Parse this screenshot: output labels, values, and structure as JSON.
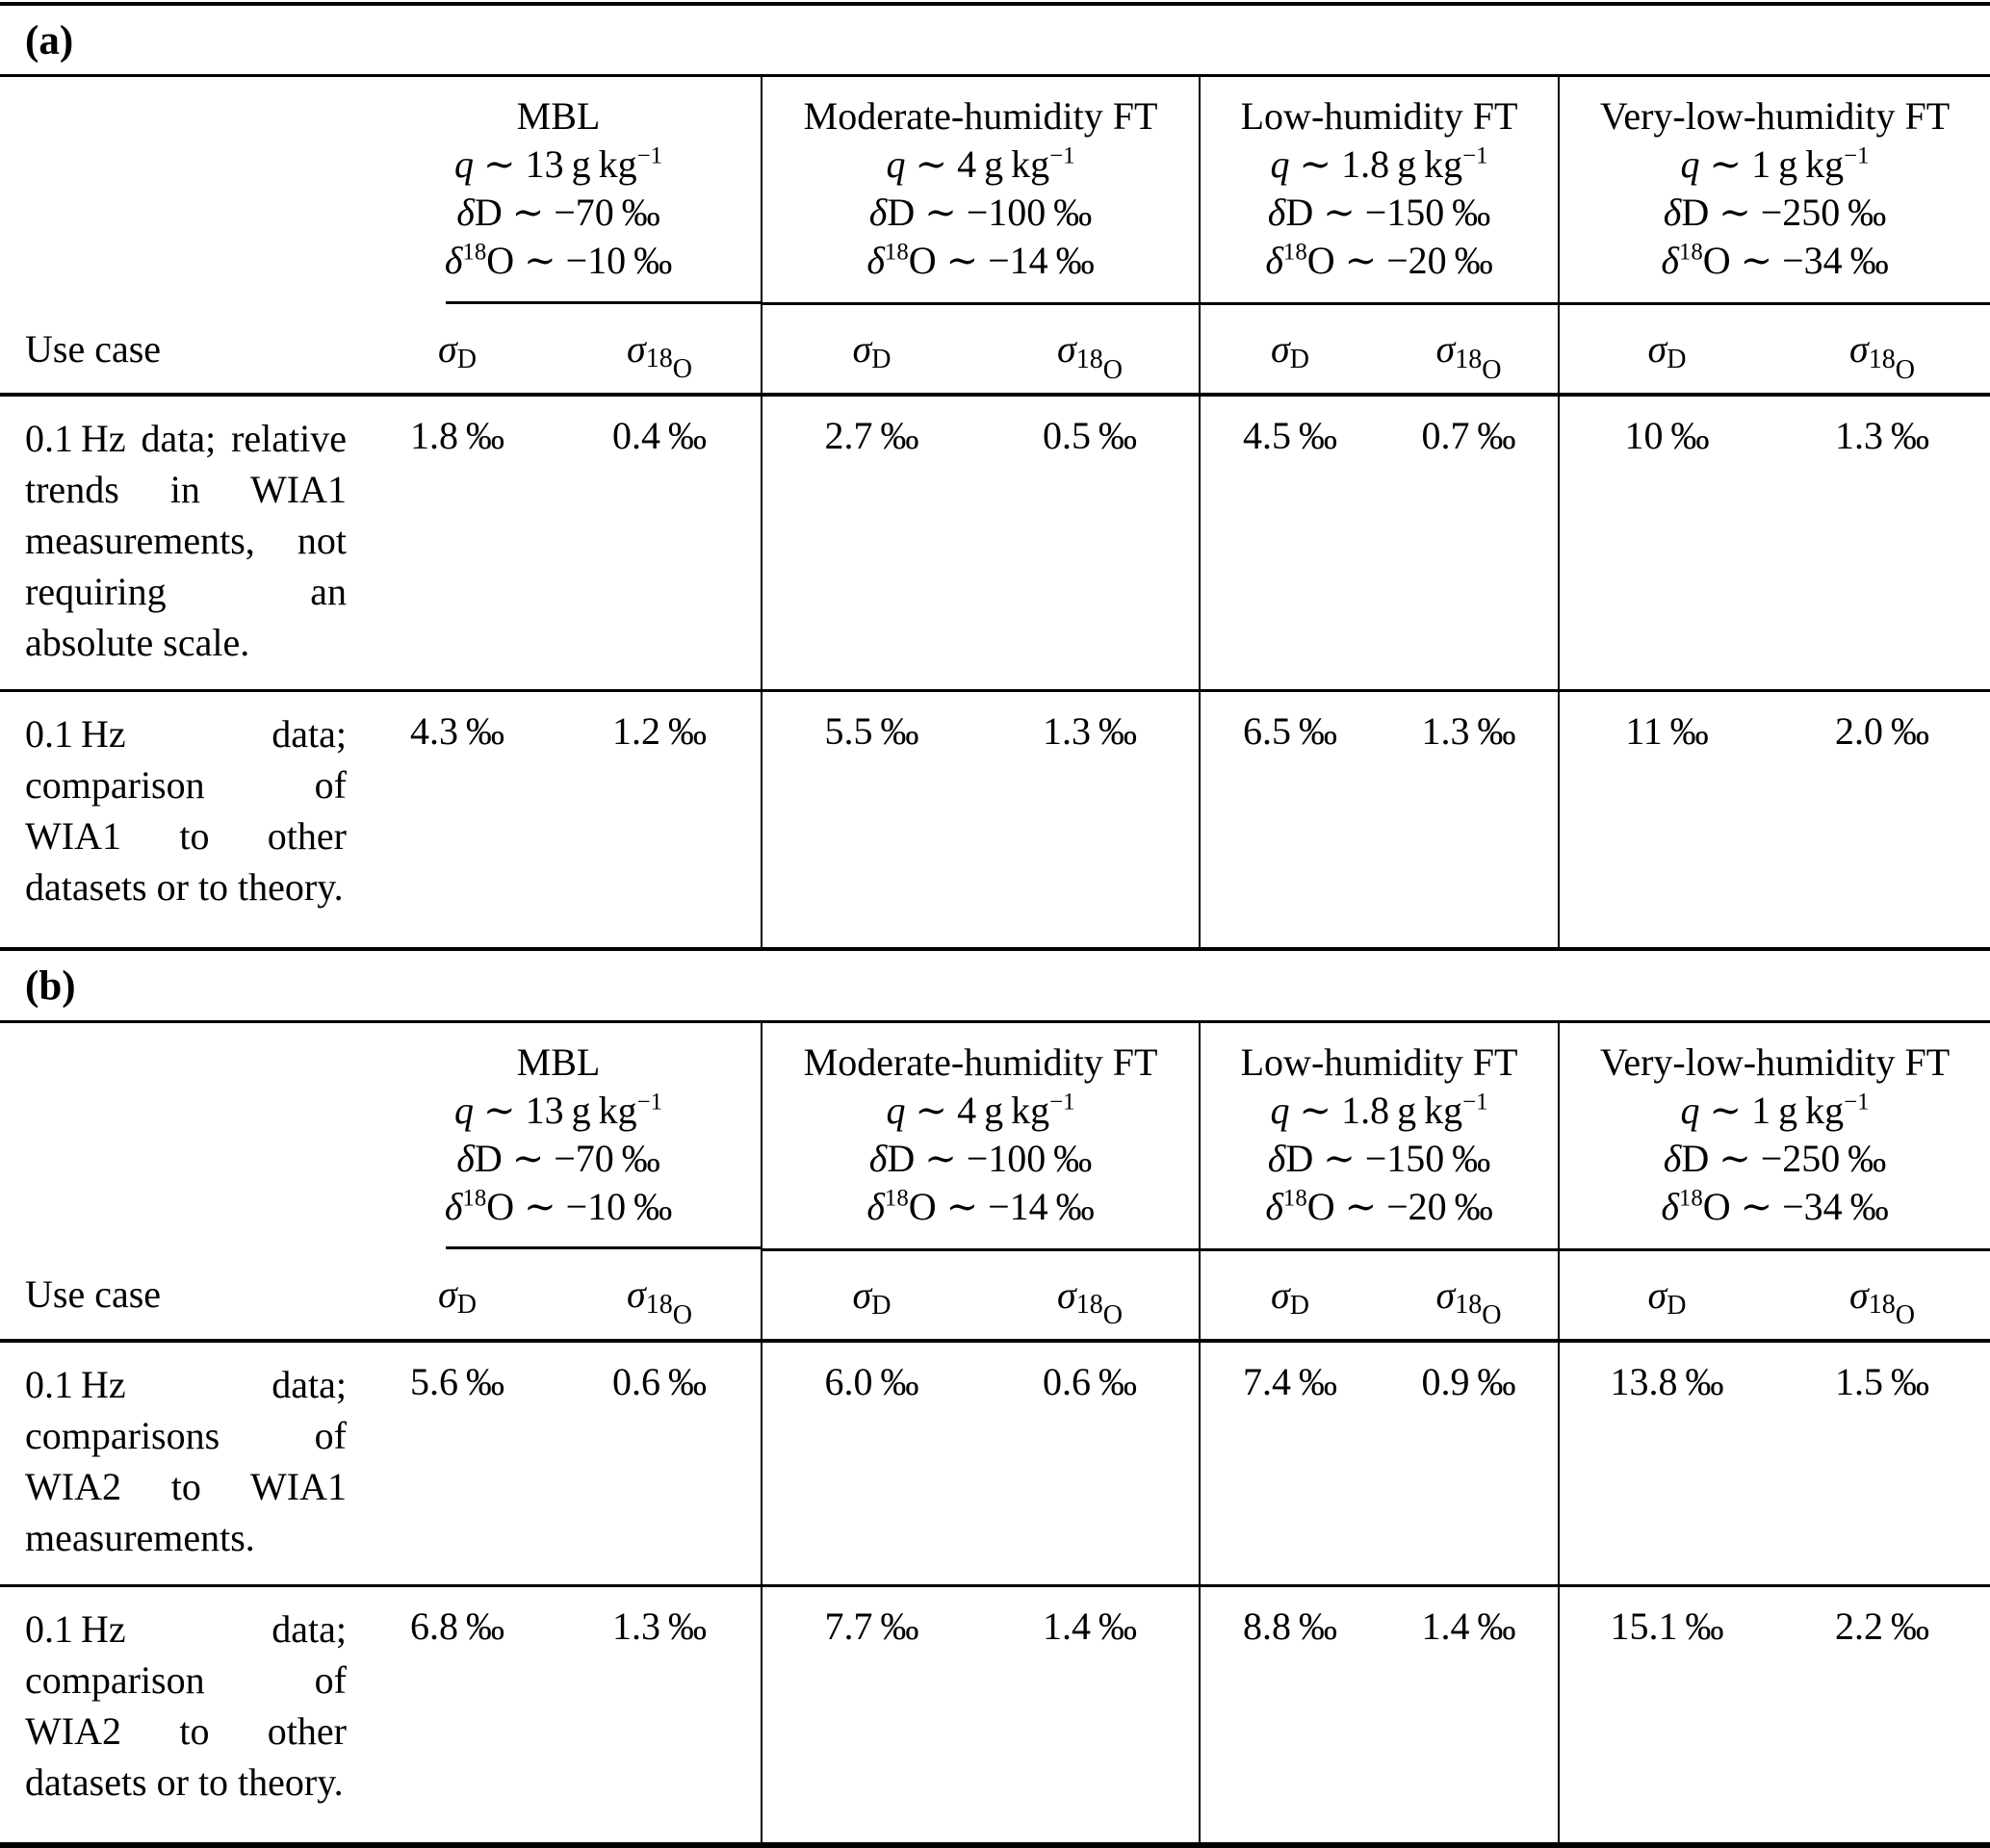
{
  "document": {
    "kind": "scientific-paper-table",
    "panels": [
      {
        "label": "(a)",
        "use_case_header": "Use case",
        "sigma_headers": [
          "<i>σ</i><sub>D</sub>",
          "<i>σ</i><sub>18<sub>O</sub></sub>"
        ],
        "column_groups": [
          {
            "name": "MBL",
            "q": "13 g kg-1",
            "dD": "-70 permil",
            "d18O": "-10 permil",
            "lines": [
              "MBL",
              "<i>q</i> ∼ 13 g kg<sup>−1</sup>",
              "<i>δ</i>D ∼ −70 ‰",
              "<i>δ</i><sup>18</sup>O ∼ −10 ‰"
            ]
          },
          {
            "name": "Moderate-humidity FT",
            "q": "4 g kg-1",
            "dD": "-100 permil",
            "d18O": "-14 permil",
            "lines": [
              "Moderate-humidity FT",
              "<i>q</i> ∼ 4 g kg<sup>−1</sup>",
              "<i>δ</i>D ∼ −100 ‰",
              "<i>δ</i><sup>18</sup>O ∼ −14 ‰"
            ]
          },
          {
            "name": "Low-humidity FT",
            "q": "1.8 g kg-1",
            "dD": "-150 permil",
            "d18O": "-20 permil",
            "lines": [
              "Low-humidity FT",
              "<i>q</i> ∼ 1.8 g kg<sup>−1</sup>",
              "<i>δ</i>D ∼ −150 ‰",
              "<i>δ</i><sup>18</sup>O ∼ −20 ‰"
            ]
          },
          {
            "name": "Very-low-humidity FT",
            "q": "1 g kg-1",
            "dD": "-250 permil",
            "d18O": "-34 permil",
            "lines": [
              "Very-low-humidity FT",
              "<i>q</i> ∼ 1 g kg<sup>−1</sup>",
              "<i>δ</i>D ∼ −250 ‰",
              "<i>δ</i><sup>18</sup>O ∼ −34 ‰"
            ]
          }
        ],
        "rows": [
          {
            "use_case": "0.1 Hz data; rela­tive trends in WIA1 measurements, not requiring an absolute scale.",
            "values": [
              "1.8 ‰",
              "0.4 ‰",
              "2.7 ‰",
              "0.5 ‰",
              "4.5 ‰",
              "0.7 ‰",
              "10 ‰",
              "1.3 ‰"
            ]
          },
          {
            "use_case": "0.1 Hz data; compari­son of WIA1 to other datasets or to theory.",
            "values": [
              "4.3 ‰",
              "1.2 ‰",
              "5.5 ‰",
              "1.3 ‰",
              "6.5 ‰",
              "1.3 ‰",
              "11 ‰",
              "2.0 ‰"
            ]
          }
        ]
      },
      {
        "label": "(b)",
        "use_case_header": "Use case",
        "sigma_headers": [
          "<i>σ</i><sub>D</sub>",
          "<i>σ</i><sub>18<sub>O</sub></sub>"
        ],
        "column_groups": [
          {
            "name": "MBL",
            "q": "13 g kg-1",
            "dD": "-70 permil",
            "d18O": "-10 permil",
            "lines": [
              "MBL",
              "<i>q</i> ∼ 13 g kg<sup>−1</sup>",
              "<i>δ</i>D ∼ −70 ‰",
              "<i>δ</i><sup>18</sup>O ∼ −10 ‰"
            ]
          },
          {
            "name": "Moderate-humidity FT",
            "q": "4 g kg-1",
            "dD": "-100 permil",
            "d18O": "-14 permil",
            "lines": [
              "Moderate-humidity FT",
              "<i>q</i> ∼ 4 g kg<sup>−1</sup>",
              "<i>δ</i>D ∼ −100 ‰",
              "<i>δ</i><sup>18</sup>O ∼ −14 ‰"
            ]
          },
          {
            "name": "Low-humidity FT",
            "q": "1.8 g kg-1",
            "dD": "-150 permil",
            "d18O": "-20 permil",
            "lines": [
              "Low-humidity FT",
              "<i>q</i> ∼ 1.8 g kg<sup>−1</sup>",
              "<i>δ</i>D ∼ −150 ‰",
              "<i>δ</i><sup>18</sup>O ∼ −20 ‰"
            ]
          },
          {
            "name": "Very-low-humidity FT",
            "q": "1 g kg-1",
            "dD": "-250 permil",
            "d18O": "-34 permil",
            "lines": [
              "Very-low-humidity FT",
              "<i>q</i> ∼ 1 g kg<sup>−1</sup>",
              "<i>δ</i>D ∼ −250 ‰",
              "<i>δ</i><sup>18</sup>O ∼ −34 ‰"
            ]
          }
        ],
        "rows": [
          {
            "use_case": "0.1 Hz data; compar­isons of WIA2 to WIA1 measurements.",
            "values": [
              "5.6 ‰",
              "0.6 ‰",
              "6.0 ‰",
              "0.6 ‰",
              "7.4 ‰",
              "0.9 ‰",
              "13.8 ‰",
              "1.5 ‰"
            ]
          },
          {
            "use_case": "0.1 Hz data; compari­son of WIA2 to other datasets or to theory.",
            "values": [
              "6.8 ‰",
              "1.3 ‰",
              "7.7 ‰",
              "1.4 ‰",
              "8.8 ‰",
              "1.4 ‰",
              "15.1 ‰",
              "2.2 ‰"
            ]
          }
        ]
      }
    ],
    "colors": {
      "text": "#000000",
      "rule": "#000000",
      "background": "#ffffff"
    }
  }
}
